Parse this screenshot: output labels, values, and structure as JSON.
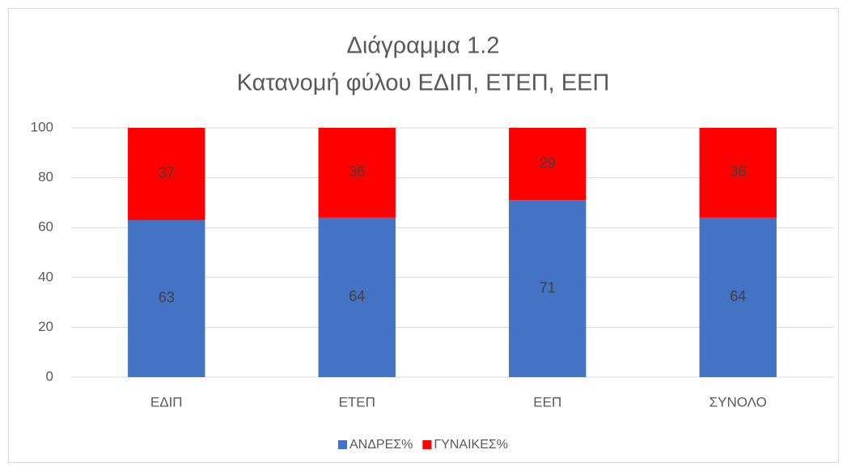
{
  "chart_data": {
    "type": "stacked_bar",
    "title": "Διάγραμμα 1.2",
    "subtitle": "Κατανομή φύλου ΕΔΙΠ, ΕΤΕΠ, ΕΕΠ",
    "categories": [
      "ΕΔΙΠ",
      "ΕΤΕΠ",
      "ΕΕΠ",
      "ΣΥΝΟΛΟ"
    ],
    "series": [
      {
        "name": "ΑΝΔΡΕΣ%",
        "color": "#4472c4",
        "values": [
          63,
          64,
          71,
          64
        ]
      },
      {
        "name": "ΓΥΝΑΙΚΕΣ%",
        "color": "#ff0000",
        "values": [
          37,
          36,
          29,
          36
        ]
      }
    ],
    "ylim": [
      0,
      100
    ],
    "yticks": [
      0,
      20,
      40,
      60,
      80,
      100
    ],
    "grid": true,
    "legend": "bottom"
  }
}
